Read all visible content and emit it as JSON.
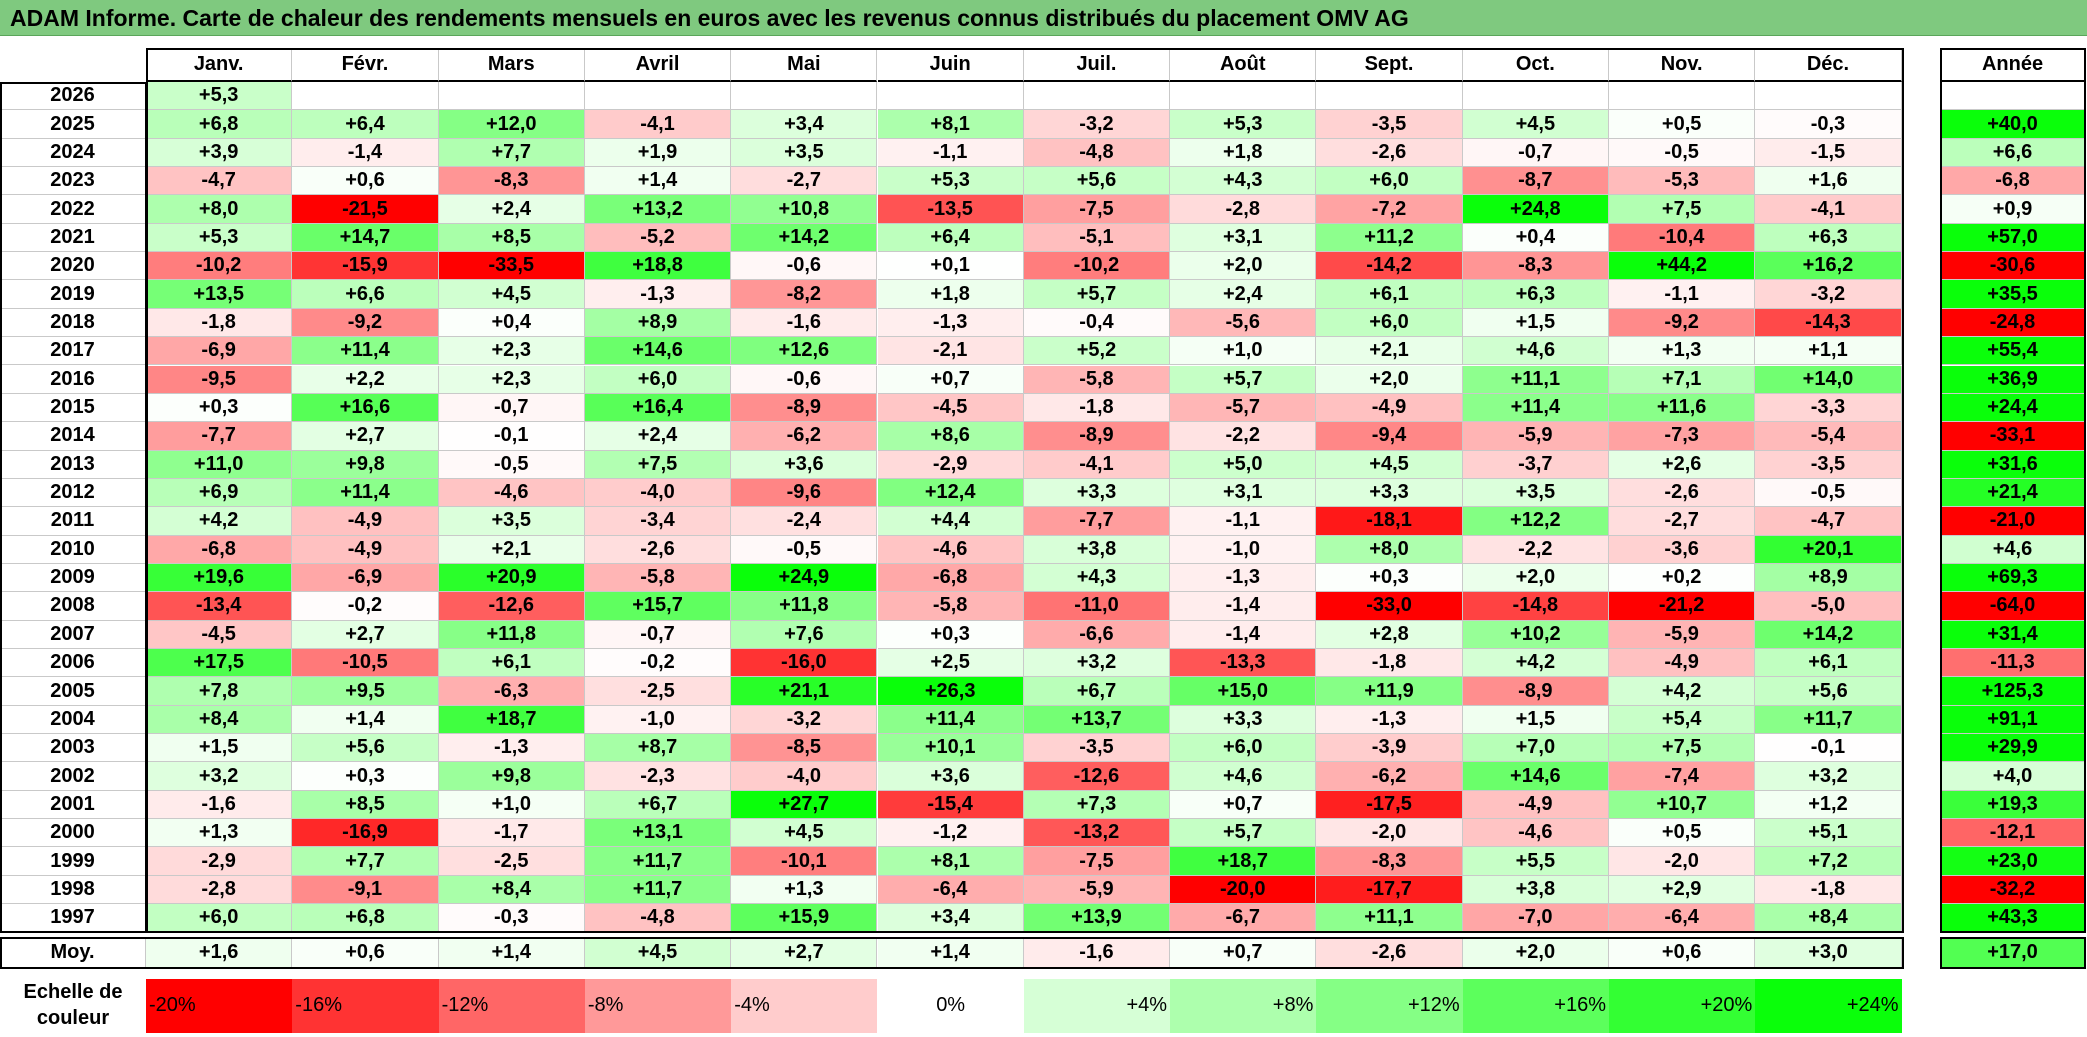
{
  "title": "ADAM Informe. Carte de chaleur des rendements mensuels en euros avec les revenus connus distribués du placement OMV AG",
  "chart_data": {
    "type": "heatmap",
    "months": [
      "Janv.",
      "Févr.",
      "Mars",
      "Avril",
      "Mai",
      "Juin",
      "Juil.",
      "Août",
      "Sept.",
      "Oct.",
      "Nov.",
      "Déc."
    ],
    "annual_header": "Année",
    "rows": [
      {
        "year": "2026",
        "values": [
          5.3,
          null,
          null,
          null,
          null,
          null,
          null,
          null,
          null,
          null,
          null,
          null
        ],
        "annual": null
      },
      {
        "year": "2025",
        "values": [
          6.8,
          6.4,
          12.0,
          -4.1,
          3.4,
          8.1,
          -3.2,
          5.3,
          -3.5,
          4.5,
          0.5,
          -0.3
        ],
        "annual": 40.0
      },
      {
        "year": "2024",
        "values": [
          3.9,
          -1.4,
          7.7,
          1.9,
          3.5,
          -1.1,
          -4.8,
          1.8,
          -2.6,
          -0.7,
          -0.5,
          -1.5
        ],
        "annual": 6.6
      },
      {
        "year": "2023",
        "values": [
          -4.7,
          0.6,
          -8.3,
          1.4,
          -2.7,
          5.3,
          5.6,
          4.3,
          6.0,
          -8.7,
          -5.3,
          1.6
        ],
        "annual": -6.8
      },
      {
        "year": "2022",
        "values": [
          8.0,
          -21.5,
          2.4,
          13.2,
          10.8,
          -13.5,
          -7.5,
          -2.8,
          -7.2,
          24.8,
          7.5,
          -4.1
        ],
        "annual": 0.9
      },
      {
        "year": "2021",
        "values": [
          5.3,
          14.7,
          8.5,
          -5.2,
          14.2,
          6.4,
          -5.1,
          3.1,
          11.2,
          0.4,
          -10.4,
          6.3
        ],
        "annual": 57.0
      },
      {
        "year": "2020",
        "values": [
          -10.2,
          -15.9,
          -33.5,
          18.8,
          -0.6,
          0.1,
          -10.2,
          2.0,
          -14.2,
          -8.3,
          44.2,
          16.2
        ],
        "annual": -30.6
      },
      {
        "year": "2019",
        "values": [
          13.5,
          6.6,
          4.5,
          -1.3,
          -8.2,
          1.8,
          5.7,
          2.4,
          6.1,
          6.3,
          -1.1,
          -3.2
        ],
        "annual": 35.5
      },
      {
        "year": "2018",
        "values": [
          -1.8,
          -9.2,
          0.4,
          8.9,
          -1.6,
          -1.3,
          -0.4,
          -5.6,
          6.0,
          1.5,
          -9.2,
          -14.3
        ],
        "annual": -24.8
      },
      {
        "year": "2017",
        "values": [
          -6.9,
          11.4,
          2.3,
          14.6,
          12.6,
          -2.1,
          5.2,
          1.0,
          2.1,
          4.6,
          1.3,
          1.1
        ],
        "annual": 55.4
      },
      {
        "year": "2016",
        "values": [
          -9.5,
          2.2,
          2.3,
          6.0,
          -0.6,
          0.7,
          -5.8,
          5.7,
          2.0,
          11.1,
          7.1,
          14.0
        ],
        "annual": 36.9
      },
      {
        "year": "2015",
        "values": [
          0.3,
          16.6,
          -0.7,
          16.4,
          -8.9,
          -4.5,
          -1.8,
          -5.7,
          -4.9,
          11.4,
          11.6,
          -3.3
        ],
        "annual": 24.4
      },
      {
        "year": "2014",
        "values": [
          -7.7,
          2.7,
          -0.1,
          2.4,
          -6.2,
          8.6,
          -8.9,
          -2.2,
          -9.4,
          -5.9,
          -7.3,
          -5.4
        ],
        "annual": -33.1
      },
      {
        "year": "2013",
        "values": [
          11.0,
          9.8,
          -0.5,
          7.5,
          3.6,
          -2.9,
          -4.1,
          5.0,
          4.5,
          -3.7,
          2.6,
          -3.5
        ],
        "annual": 31.6
      },
      {
        "year": "2012",
        "values": [
          6.9,
          11.4,
          -4.6,
          -4.0,
          -9.6,
          12.4,
          3.3,
          3.1,
          3.3,
          3.5,
          -2.6,
          -0.5
        ],
        "annual": 21.4
      },
      {
        "year": "2011",
        "values": [
          4.2,
          -4.9,
          3.5,
          -3.4,
          -2.4,
          4.4,
          -7.7,
          -1.1,
          -18.1,
          12.2,
          -2.7,
          -4.7
        ],
        "annual": -21.0
      },
      {
        "year": "2010",
        "values": [
          -6.8,
          -4.9,
          2.1,
          -2.6,
          -0.5,
          -4.6,
          3.8,
          -1.0,
          8.0,
          -2.2,
          -3.6,
          20.1
        ],
        "annual": 4.6
      },
      {
        "year": "2009",
        "values": [
          19.6,
          -6.9,
          20.9,
          -5.8,
          24.9,
          -6.8,
          4.3,
          -1.3,
          0.3,
          2.0,
          0.2,
          8.9
        ],
        "annual": 69.3
      },
      {
        "year": "2008",
        "values": [
          -13.4,
          -0.2,
          -12.6,
          15.7,
          11.8,
          -5.8,
          -11.0,
          -1.4,
          -33.0,
          -14.8,
          -21.2,
          -5.0
        ],
        "annual": -64.0
      },
      {
        "year": "2007",
        "values": [
          -4.5,
          2.7,
          11.8,
          -0.7,
          7.6,
          0.3,
          -6.6,
          -1.4,
          2.8,
          10.2,
          -5.9,
          14.2
        ],
        "annual": 31.4
      },
      {
        "year": "2006",
        "values": [
          17.5,
          -10.5,
          6.1,
          -0.2,
          -16.0,
          2.5,
          3.2,
          -13.3,
          -1.8,
          4.2,
          -4.9,
          6.1
        ],
        "annual": -11.3
      },
      {
        "year": "2005",
        "values": [
          7.8,
          9.5,
          -6.3,
          -2.5,
          21.1,
          26.3,
          6.7,
          15.0,
          11.9,
          -8.9,
          4.2,
          5.6
        ],
        "annual": 125.3
      },
      {
        "year": "2004",
        "values": [
          8.4,
          1.4,
          18.7,
          -1.0,
          -3.2,
          11.4,
          13.7,
          3.3,
          -1.3,
          1.5,
          5.4,
          11.7
        ],
        "annual": 91.1
      },
      {
        "year": "2003",
        "values": [
          1.5,
          5.6,
          -1.3,
          8.7,
          -8.5,
          10.1,
          -3.5,
          6.0,
          -3.9,
          7.0,
          7.5,
          -0.1
        ],
        "annual": 29.9
      },
      {
        "year": "2002",
        "values": [
          3.2,
          0.3,
          9.8,
          -2.3,
          -4.0,
          3.6,
          -12.6,
          4.6,
          -6.2,
          14.6,
          -7.4,
          3.2
        ],
        "annual": 4.0
      },
      {
        "year": "2001",
        "values": [
          -1.6,
          8.5,
          1.0,
          6.7,
          27.7,
          -15.4,
          7.3,
          0.7,
          -17.5,
          -4.9,
          10.7,
          1.2
        ],
        "annual": 19.3
      },
      {
        "year": "2000",
        "values": [
          1.3,
          -16.9,
          -1.7,
          13.1,
          4.5,
          -1.2,
          -13.2,
          5.7,
          -2.0,
          -4.6,
          0.5,
          5.1
        ],
        "annual": -12.1
      },
      {
        "year": "1999",
        "values": [
          -2.9,
          7.7,
          -2.5,
          11.7,
          -10.1,
          8.1,
          -7.5,
          18.7,
          -8.3,
          5.5,
          -2.0,
          7.2
        ],
        "annual": 23.0
      },
      {
        "year": "1998",
        "values": [
          -2.8,
          -9.1,
          8.4,
          11.7,
          1.3,
          -6.4,
          -5.9,
          -20.0,
          -17.7,
          3.8,
          2.9,
          -1.8
        ],
        "annual": -32.2
      },
      {
        "year": "1997",
        "values": [
          6.0,
          6.8,
          -0.3,
          -4.8,
          15.9,
          3.4,
          13.9,
          -6.7,
          11.1,
          -7.0,
          -6.4,
          8.4
        ],
        "annual": 43.3
      }
    ],
    "average": {
      "label": "Moy.",
      "values": [
        1.6,
        0.6,
        1.4,
        4.5,
        2.7,
        1.4,
        -1.6,
        0.7,
        -2.6,
        2.0,
        0.6,
        3.0
      ],
      "annual": 17.0
    },
    "color_scale": {
      "label": "Echelle de couleur",
      "stops": [
        {
          "label": "-20%",
          "value": -20,
          "color": "#ff0000"
        },
        {
          "label": "-16%",
          "value": -16,
          "color": "#ff3333"
        },
        {
          "label": "-12%",
          "value": -12,
          "color": "#ff6666"
        },
        {
          "label": "-8%",
          "value": -8,
          "color": "#ff9999"
        },
        {
          "label": "-4%",
          "value": -4,
          "color": "#ffcccc"
        },
        {
          "label": "0%",
          "value": 0,
          "color": "#ffffff"
        },
        {
          "label": "+4%",
          "value": 4,
          "color": "#d6ffd6"
        },
        {
          "label": "+8%",
          "value": 8,
          "color": "#adffad"
        },
        {
          "label": "+12%",
          "value": 12,
          "color": "#85ff85"
        },
        {
          "label": "+16%",
          "value": 16,
          "color": "#5cff5c"
        },
        {
          "label": "+20%",
          "value": 20,
          "color": "#33ff33"
        },
        {
          "label": "+24%",
          "value": 24,
          "color": "#0aff0a"
        }
      ]
    }
  }
}
